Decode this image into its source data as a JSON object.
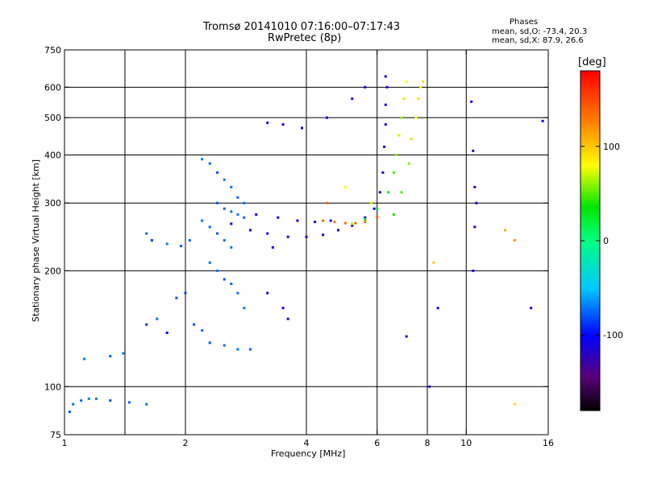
{
  "title": "Tromsø 20141010 07:16:00–07:17:43",
  "subtitle": "RwPretec (8p)",
  "phase_box": {
    "heading": "Phases",
    "line_o": "mean, sd,O: -73.4, 20.3",
    "line_x": "mean, sd,X:  87.9, 26.6"
  },
  "colorbar": {
    "label": "[deg]",
    "ticks": [
      {
        "label": "100",
        "value": 100
      },
      {
        "label": "0",
        "value": 0
      },
      {
        "label": "-100",
        "value": -100
      }
    ],
    "range": [
      -180,
      180
    ]
  },
  "chart_data": {
    "type": "scatter",
    "title": "Tromsø 20141010 07:16:00–07:17:43",
    "subtitle": "RwPretec (8p)",
    "xlabel": "Frequency [MHz]",
    "ylabel": "Stationary phase Virtual Height [km]",
    "x_scale": "log",
    "y_scale": "log",
    "xlim": [
      1,
      16
    ],
    "ylim": [
      75,
      750
    ],
    "x_ticks": [
      {
        "label": "1",
        "value": 1
      },
      {
        "label": "2",
        "value": 2
      },
      {
        "label": "4",
        "value": 4
      },
      {
        "label": "6",
        "value": 6
      },
      {
        "label": "8",
        "value": 8
      },
      {
        "label": "10",
        "value": 10
      },
      {
        "label": "16",
        "value": 16
      }
    ],
    "y_ticks": [
      {
        "label": "75",
        "value": 75
      },
      {
        "label": "100",
        "value": 100
      },
      {
        "label": "200",
        "value": 200
      },
      {
        "label": "300",
        "value": 300
      },
      {
        "label": "400",
        "value": 400
      },
      {
        "label": "500",
        "value": 500
      },
      {
        "label": "600",
        "value": 600
      },
      {
        "label": "750",
        "value": 750
      }
    ],
    "grid_x": [
      1.414,
      2,
      4,
      6,
      8,
      10
    ],
    "grid_y": [
      100,
      200,
      300,
      400,
      500,
      600
    ],
    "color_by": "phase [deg]",
    "series": [
      {
        "points": [
          [
            1.05,
            90,
            -70
          ],
          [
            1.1,
            92,
            -75
          ],
          [
            1.15,
            93,
            -70
          ],
          [
            1.2,
            93,
            -72
          ],
          [
            1.3,
            92,
            -80
          ],
          [
            1.45,
            91,
            -75
          ],
          [
            1.6,
            90,
            -70
          ],
          [
            1.03,
            86,
            -80
          ],
          [
            1.12,
            118,
            -70
          ],
          [
            1.3,
            120,
            -75
          ],
          [
            1.4,
            122,
            -70
          ],
          [
            1.6,
            145,
            -90
          ],
          [
            1.7,
            150,
            -75
          ],
          [
            1.8,
            138,
            -100
          ],
          [
            1.9,
            170,
            -80
          ],
          [
            2.0,
            175,
            -85
          ],
          [
            2.1,
            145,
            -80
          ],
          [
            1.6,
            250,
            -75
          ],
          [
            1.65,
            240,
            -85
          ],
          [
            1.8,
            235,
            -70
          ],
          [
            1.95,
            232,
            -80
          ],
          [
            2.05,
            240,
            -75
          ]
        ]
      },
      {
        "points": [
          [
            2.2,
            390,
            -70
          ],
          [
            2.3,
            380,
            -75
          ],
          [
            2.4,
            360,
            -80
          ],
          [
            2.5,
            345,
            -70
          ],
          [
            2.6,
            330,
            -72
          ],
          [
            2.7,
            310,
            -75
          ],
          [
            2.8,
            300,
            -70
          ],
          [
            2.4,
            300,
            -80
          ],
          [
            2.5,
            290,
            -75
          ],
          [
            2.6,
            285,
            -72
          ],
          [
            2.7,
            280,
            -70
          ],
          [
            2.8,
            275,
            -75
          ],
          [
            2.2,
            270,
            -70
          ],
          [
            2.3,
            260,
            -75
          ],
          [
            2.4,
            250,
            -80
          ],
          [
            2.5,
            240,
            -72
          ],
          [
            2.6,
            230,
            -70
          ],
          [
            2.3,
            210,
            -75
          ],
          [
            2.4,
            200,
            -70
          ],
          [
            2.5,
            190,
            -80
          ],
          [
            2.6,
            185,
            -75
          ],
          [
            2.7,
            175,
            -72
          ],
          [
            2.8,
            160,
            -70
          ],
          [
            2.2,
            140,
            -75
          ],
          [
            2.3,
            130,
            -80
          ],
          [
            2.5,
            128,
            -72
          ],
          [
            2.7,
            125,
            -70
          ],
          [
            2.9,
            125,
            -75
          ]
        ]
      },
      {
        "points": [
          [
            2.6,
            265,
            -110
          ],
          [
            2.9,
            255,
            -105
          ],
          [
            3.2,
            250,
            -110
          ],
          [
            3.6,
            245,
            -108
          ],
          [
            4.0,
            245,
            -105
          ],
          [
            4.4,
            248,
            -110
          ],
          [
            4.8,
            255,
            -105
          ],
          [
            5.2,
            262,
            -110
          ],
          [
            5.6,
            275,
            -108
          ],
          [
            5.9,
            290,
            -105
          ],
          [
            6.1,
            320,
            -110
          ],
          [
            6.2,
            360,
            -108
          ],
          [
            6.25,
            420,
            -105
          ],
          [
            6.3,
            480,
            -110
          ],
          [
            6.3,
            540,
            -108
          ],
          [
            6.35,
            600,
            -105
          ],
          [
            6.3,
            640,
            -110
          ],
          [
            3.0,
            280,
            -110
          ],
          [
            3.4,
            275,
            -108
          ],
          [
            3.8,
            270,
            -105
          ],
          [
            4.2,
            268,
            -110
          ],
          [
            4.6,
            270,
            -108
          ],
          [
            3.3,
            230,
            -110
          ],
          [
            3.5,
            160,
            -105
          ],
          [
            3.2,
            175,
            -110
          ],
          [
            3.6,
            150,
            -108
          ],
          [
            3.9,
            470,
            -105
          ],
          [
            3.5,
            480,
            -110
          ],
          [
            3.2,
            485,
            -108
          ],
          [
            4.5,
            500,
            -105
          ],
          [
            5.2,
            560,
            -110
          ],
          [
            5.6,
            600,
            -108
          ]
        ]
      },
      {
        "points": [
          [
            5.2,
            265,
            60
          ],
          [
            5.6,
            272,
            40
          ],
          [
            6.0,
            290,
            30
          ],
          [
            6.4,
            320,
            40
          ],
          [
            6.6,
            360,
            50
          ],
          [
            6.7,
            400,
            60
          ],
          [
            6.8,
            450,
            70
          ],
          [
            6.9,
            500,
            60
          ],
          [
            7.0,
            560,
            70
          ],
          [
            7.1,
            620,
            80
          ],
          [
            6.6,
            280,
            40
          ],
          [
            6.9,
            320,
            50
          ],
          [
            7.2,
            380,
            60
          ],
          [
            7.3,
            440,
            70
          ],
          [
            7.5,
            500,
            80
          ],
          [
            7.6,
            560,
            90
          ],
          [
            7.7,
            600,
            85
          ],
          [
            7.8,
            620,
            90
          ],
          [
            5.8,
            300,
            70
          ],
          [
            5.0,
            330,
            80
          ]
        ]
      },
      {
        "points": [
          [
            4.4,
            270,
            140
          ],
          [
            4.7,
            268,
            130
          ],
          [
            5.0,
            266,
            135
          ],
          [
            5.3,
            266,
            140
          ],
          [
            5.6,
            268,
            130
          ],
          [
            6.0,
            276,
            140
          ],
          [
            4.5,
            300,
            135
          ]
        ]
      },
      {
        "points": [
          [
            10.3,
            550,
            -110
          ],
          [
            10.4,
            410,
            -105
          ],
          [
            10.5,
            330,
            -110
          ],
          [
            10.6,
            300,
            -108
          ],
          [
            10.5,
            260,
            -105
          ],
          [
            10.4,
            200,
            -110
          ],
          [
            12.5,
            255,
            110
          ],
          [
            13.2,
            240,
            120
          ],
          [
            14.5,
            160,
            -110
          ],
          [
            15.5,
            490,
            -105
          ],
          [
            8.5,
            160,
            -110
          ],
          [
            8.1,
            100,
            -108
          ],
          [
            7.1,
            135,
            -105
          ],
          [
            13.2,
            90,
            90
          ],
          [
            8.3,
            210,
            100
          ]
        ]
      }
    ]
  }
}
